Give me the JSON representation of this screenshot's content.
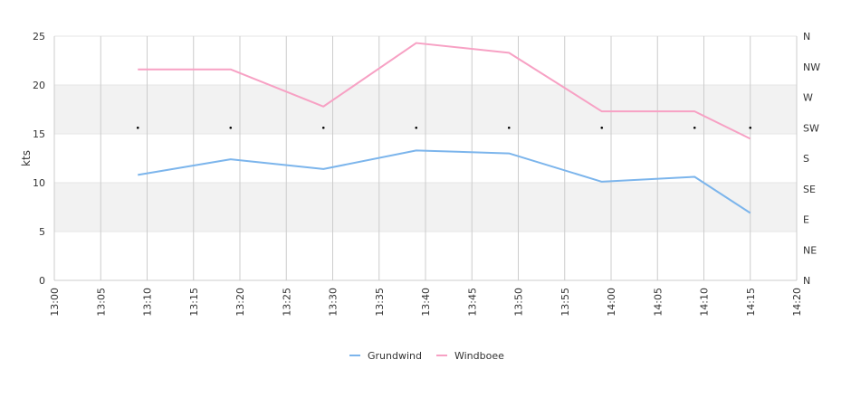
{
  "chart_data": {
    "type": "line",
    "ylabel": "kts",
    "ylim": [
      0,
      25
    ],
    "y_ticks": [
      0,
      5,
      10,
      15,
      20,
      25
    ],
    "x_range": [
      "13:00",
      "14:20"
    ],
    "x_ticks": [
      "13:00",
      "13:05",
      "13:10",
      "13:15",
      "13:20",
      "13:25",
      "13:30",
      "13:35",
      "13:40",
      "13:45",
      "13:50",
      "13:55",
      "14:00",
      "14:05",
      "14:10",
      "14:15",
      "14:20"
    ],
    "right_axis": {
      "labels": [
        "N",
        "NE",
        "E",
        "SE",
        "S",
        "SW",
        "W",
        "NW",
        "N"
      ],
      "range_degrees": [
        0,
        360
      ]
    },
    "band_fill": "#f2f2f2",
    "grid": true,
    "legend_position": "bottom-center",
    "series": [
      {
        "name": "Grundwind",
        "color": "#7cb5ec",
        "x": [
          "13:09",
          "13:19",
          "13:29",
          "13:39",
          "13:49",
          "13:59",
          "14:09",
          "14:15"
        ],
        "values": [
          10.8,
          12.4,
          11.4,
          13.3,
          13.0,
          10.1,
          10.6,
          6.9
        ]
      },
      {
        "name": "Windboee",
        "color": "#f7a1c4",
        "x": [
          "13:09",
          "13:19",
          "13:29",
          "13:39",
          "13:49",
          "13:59",
          "14:09",
          "14:15"
        ],
        "values": [
          21.6,
          21.6,
          17.8,
          24.3,
          23.3,
          17.3,
          17.3,
          14.5
        ]
      }
    ],
    "direction_markers": {
      "x": [
        "13:09",
        "13:19",
        "13:29",
        "13:39",
        "13:49",
        "13:59",
        "14:09",
        "14:15"
      ],
      "degrees": [
        225,
        225,
        225,
        225,
        225,
        225,
        225,
        225
      ]
    }
  }
}
